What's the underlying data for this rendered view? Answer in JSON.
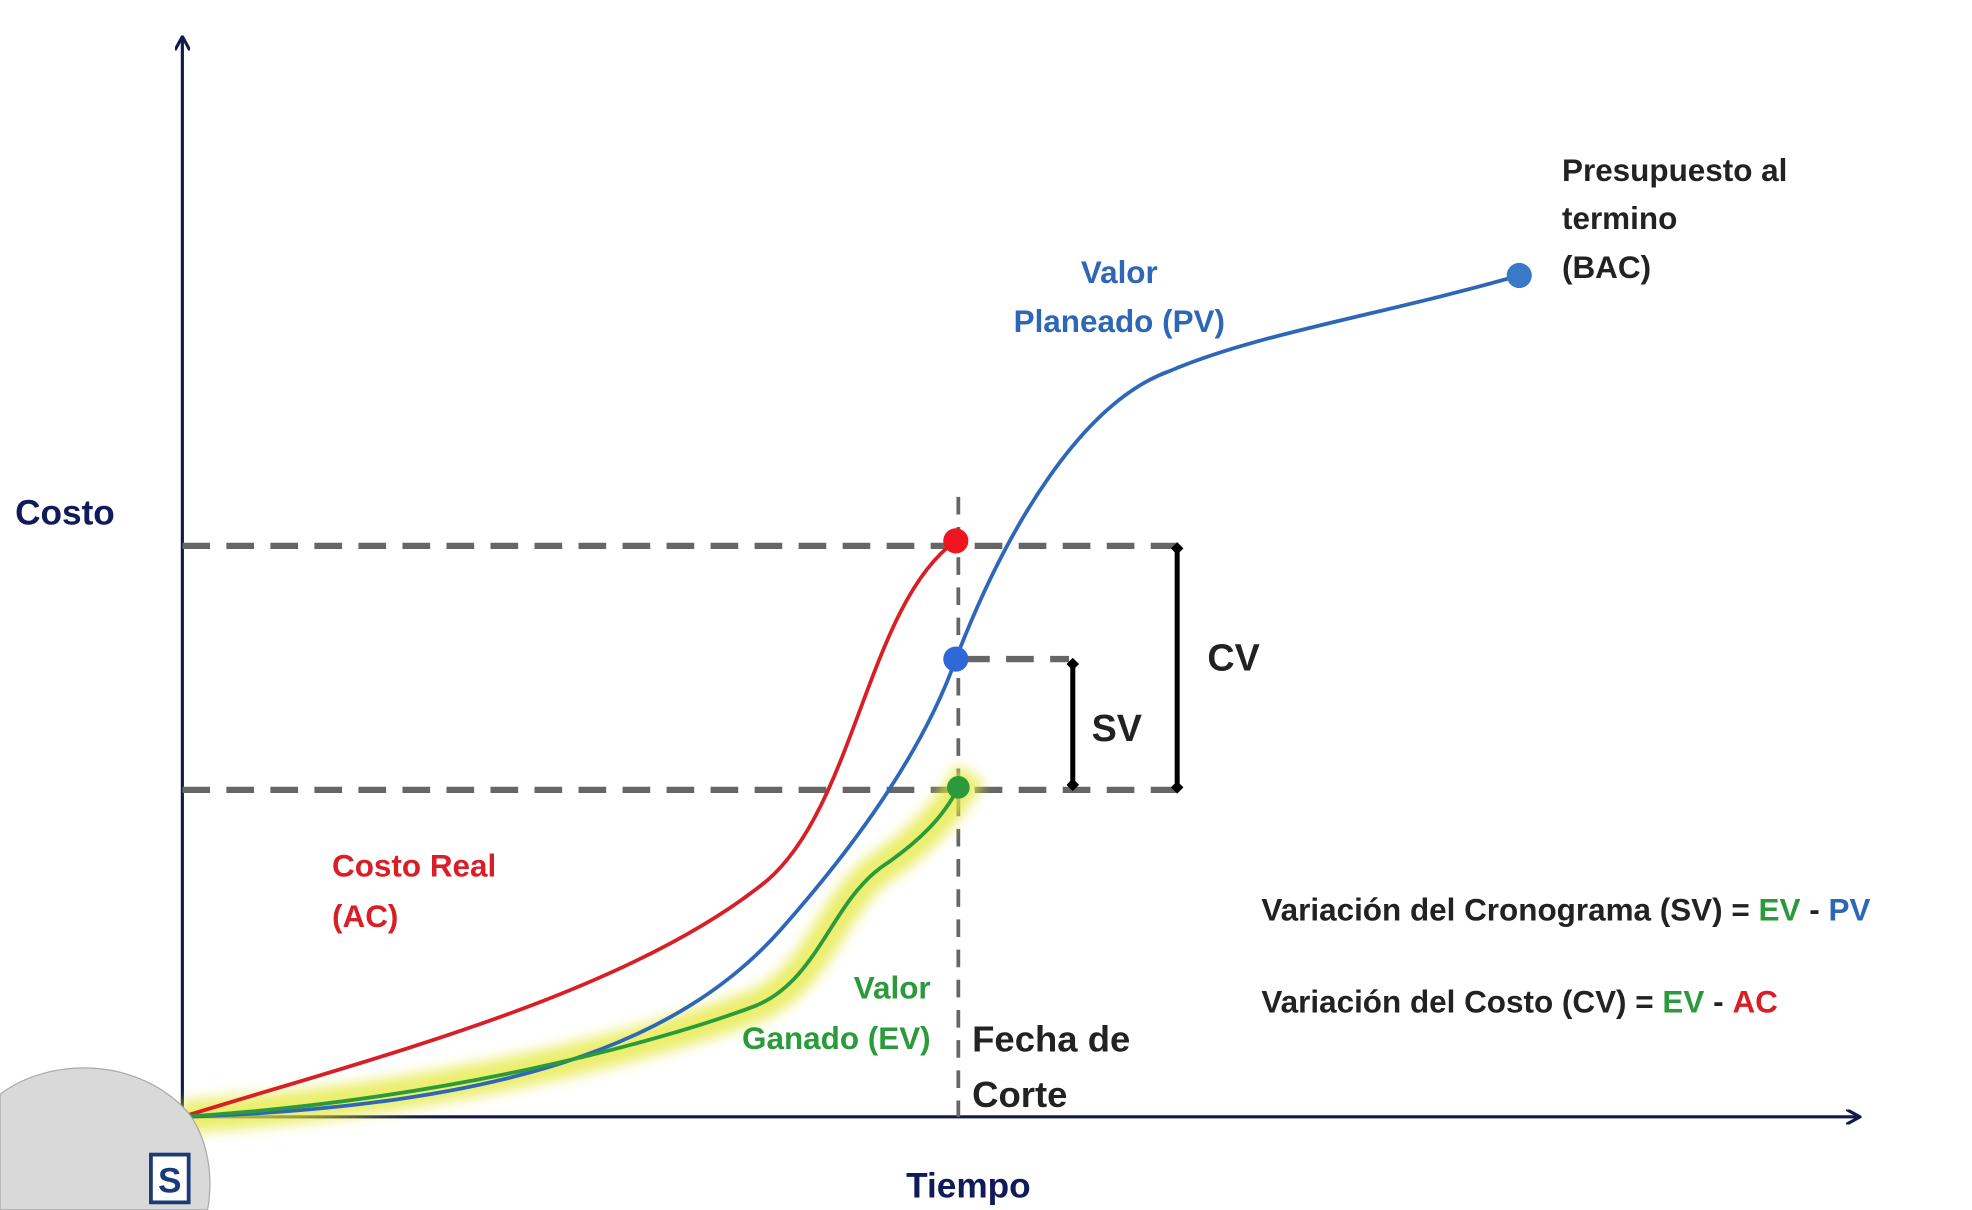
{
  "axes": {
    "y_label": "Costo",
    "x_label": "Tiempo"
  },
  "curves": {
    "pv": {
      "lines": [
        "Valor",
        "Planeado (PV)"
      ]
    },
    "ac": {
      "lines": [
        "Costo Real",
        "(AC)"
      ]
    },
    "ev": {
      "lines": [
        "Valor",
        "Ganado (EV)"
      ]
    },
    "bac": {
      "lines": [
        "Presupuesto al",
        "termino",
        "(BAC)"
      ]
    }
  },
  "cutoff": {
    "lines": [
      "Fecha de",
      "Corte"
    ]
  },
  "variances": {
    "cv": "CV",
    "sv": "SV"
  },
  "formulas": [
    {
      "label": "Variación del Cronograma (SV) =",
      "a": "EV",
      "op": "-",
      "b": "PV"
    },
    {
      "label": "Variación del Costo (CV) =",
      "a": "EV",
      "op": "-",
      "b": "AC"
    }
  ],
  "logo": "S"
}
